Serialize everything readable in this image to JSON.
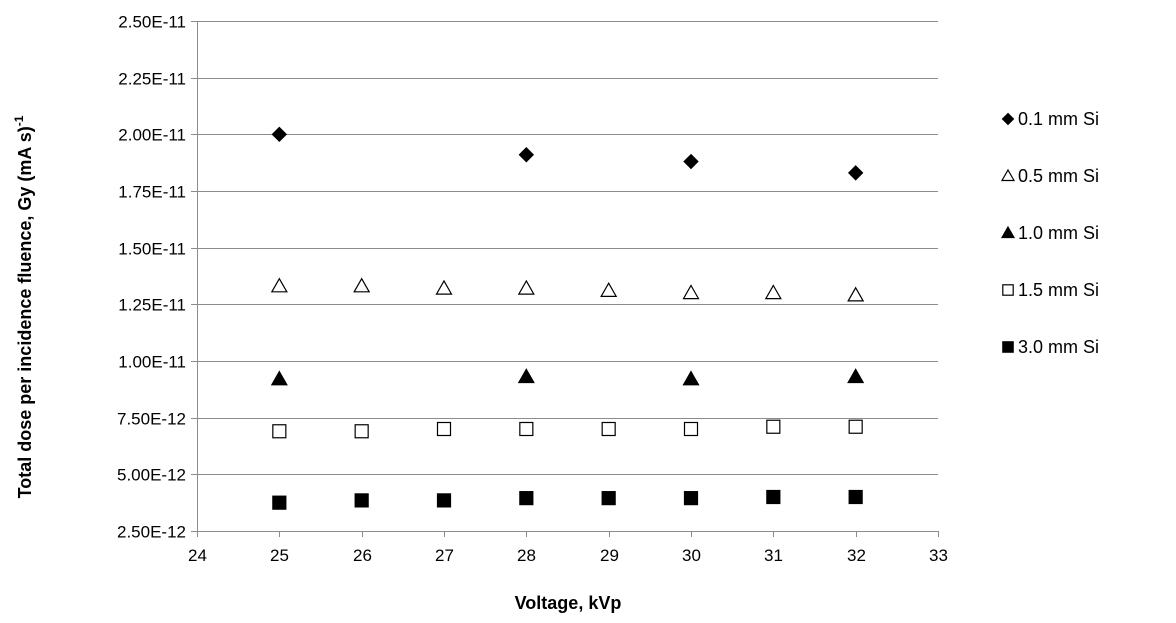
{
  "chart_data": {
    "type": "scatter",
    "title": "",
    "xlabel": "Voltage, kVp",
    "ylabel": "Total dose per incidence fluence, Gy (mA s)",
    "ylabel_superscript": "-1",
    "xlim": [
      24,
      33
    ],
    "ylim": [
      2.5e-12,
      2.5e-11
    ],
    "x_ticks": [
      24,
      25,
      26,
      27,
      28,
      29,
      30,
      31,
      32,
      33
    ],
    "x_tick_labels": [
      "24",
      "25",
      "26",
      "27",
      "28",
      "29",
      "30",
      "31",
      "32",
      "33"
    ],
    "y_ticks": [
      2.5e-12,
      5e-12,
      7.5e-12,
      1e-11,
      1.25e-11,
      1.5e-11,
      1.75e-11,
      2e-11,
      2.25e-11,
      2.5e-11
    ],
    "y_tick_labels": [
      "2.50E-12",
      "5.00E-12",
      "7.50E-12",
      "1.00E-11",
      "1.25E-11",
      "1.50E-11",
      "1.75E-11",
      "2.00E-11",
      "2.25E-11",
      "2.50E-11"
    ],
    "grid": "horizontal",
    "legend_position": "right",
    "series": [
      {
        "name": "0.1 mm Si",
        "marker": "diamond-filled",
        "x": [
          25,
          28,
          30,
          32
        ],
        "y": [
          2e-11,
          1.91e-11,
          1.88e-11,
          1.83e-11
        ]
      },
      {
        "name": "0.5 mm Si",
        "marker": "triangle-open",
        "x": [
          25,
          26,
          27,
          28,
          29,
          30,
          31,
          32
        ],
        "y": [
          1.33e-11,
          1.33e-11,
          1.32e-11,
          1.32e-11,
          1.31e-11,
          1.3e-11,
          1.3e-11,
          1.29e-11
        ]
      },
      {
        "name": "1.0 mm Si",
        "marker": "triangle-filled",
        "x": [
          25,
          28,
          30,
          32
        ],
        "y": [
          9.2e-12,
          9.3e-12,
          9.2e-12,
          9.3e-12
        ]
      },
      {
        "name": "1.5 mm Si",
        "marker": "square-open",
        "x": [
          25,
          26,
          27,
          28,
          29,
          30,
          31,
          32
        ],
        "y": [
          6.9e-12,
          6.9e-12,
          7e-12,
          7e-12,
          7e-12,
          7e-12,
          7.1e-12,
          7.1e-12
        ]
      },
      {
        "name": "3.0 mm Si",
        "marker": "square-filled",
        "x": [
          25,
          26,
          27,
          28,
          29,
          30,
          31,
          32
        ],
        "y": [
          3.75e-12,
          3.85e-12,
          3.85e-12,
          3.95e-12,
          3.95e-12,
          3.95e-12,
          4e-12,
          4e-12
        ]
      }
    ]
  }
}
